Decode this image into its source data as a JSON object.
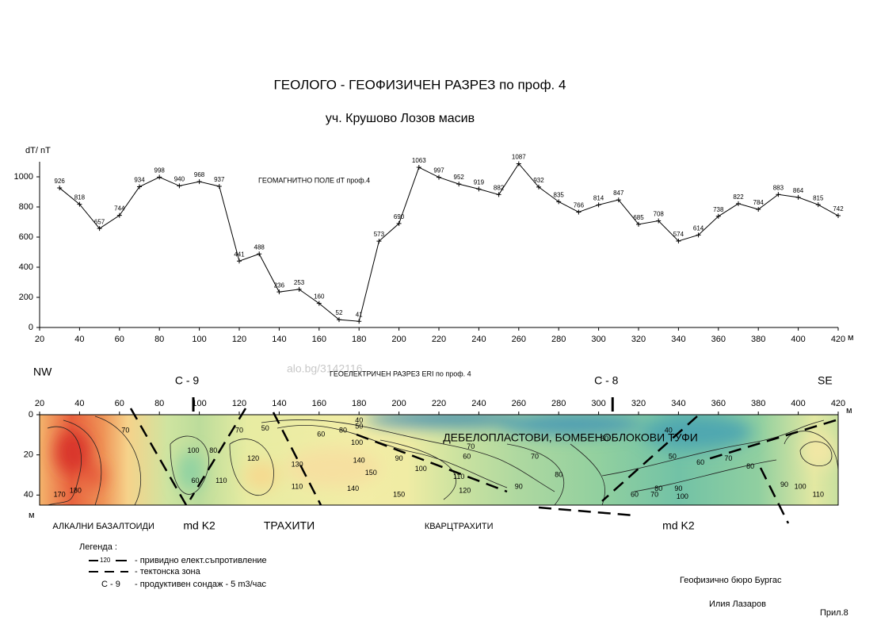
{
  "title": "ГЕОЛОГО - ГЕОФИЗИЧЕН  РАЗРЕЗ  по проф. 4",
  "subtitle": "уч. Крушово  Лозов масив",
  "watermark": "alo.bg/3142116",
  "chart_data": [
    {
      "type": "line",
      "annotation": "ГЕОМАГНИТНО ПОЛЕ  dT  проф.4",
      "y_label": "dT/ nT",
      "x_unit": "м",
      "x": [
        30,
        40,
        50,
        60,
        70,
        80,
        90,
        100,
        110,
        120,
        130,
        140,
        150,
        160,
        170,
        180,
        190,
        200,
        210,
        220,
        230,
        240,
        250,
        260,
        270,
        280,
        290,
        300,
        310,
        320,
        330,
        340,
        350,
        360,
        370,
        380,
        390,
        400,
        410,
        420
      ],
      "values": [
        926,
        818,
        657,
        744,
        934,
        998,
        940,
        968,
        937,
        441,
        488,
        236,
        253,
        160,
        52,
        41,
        573,
        690,
        1063,
        997,
        952,
        919,
        882,
        1087,
        932,
        835,
        766,
        814,
        847,
        685,
        708,
        574,
        614,
        738,
        822,
        784,
        883,
        864,
        815,
        742
      ],
      "color": "#000000",
      "xlim": [
        20,
        420
      ],
      "xticks": [
        20,
        40,
        60,
        80,
        100,
        120,
        140,
        160,
        180,
        200,
        220,
        240,
        260,
        280,
        300,
        320,
        340,
        360,
        380,
        400,
        420
      ],
      "ylim": [
        0,
        1100
      ],
      "yticks": [
        0,
        200,
        400,
        600,
        800,
        1000
      ]
    },
    {
      "type": "contour",
      "title": "ГЕОЕЛЕКТРИЧЕН РАЗРЕЗ   ERI   по проф. 4",
      "y_unit": "м",
      "x_unit": "м",
      "left_label": "NW",
      "right_label": "SE",
      "wells": [
        {
          "name": "С - 9",
          "x": 97
        },
        {
          "name": "С - 8",
          "x": 307
        }
      ],
      "xlim": [
        20,
        420
      ],
      "xticks": [
        20,
        40,
        60,
        80,
        100,
        120,
        140,
        160,
        180,
        200,
        220,
        240,
        260,
        280,
        300,
        320,
        340,
        360,
        380,
        400,
        420
      ],
      "ylim": [
        0,
        45
      ],
      "yticks": [
        0,
        20,
        40
      ],
      "formations": [
        {
          "name": "АЛКАЛНИ  БАЗАЛТОИДИ",
          "x": 52
        },
        {
          "name": "md K2",
          "x": 100
        },
        {
          "name": "ТРАХИТИ",
          "x": 145
        },
        {
          "name": "КВАРЦТРАХИТИ",
          "x": 230
        },
        {
          "name": "md K2",
          "x": 340
        }
      ],
      "inner_label": "ДЕБЕЛОПЛАСТОВИ, БОМБЕНОБЛОКОВИ  ТУФИ",
      "contour_labels": [
        {
          "value": 170,
          "x": 30,
          "depth": 40
        },
        {
          "value": 180,
          "x": 38,
          "depth": 38
        },
        {
          "value": 70,
          "x": 63,
          "depth": 8
        },
        {
          "value": 100,
          "x": 97,
          "depth": 18
        },
        {
          "value": 80,
          "x": 107,
          "depth": 18
        },
        {
          "value": 60,
          "x": 98,
          "depth": 33
        },
        {
          "value": 110,
          "x": 111,
          "depth": 33
        },
        {
          "value": 70,
          "x": 120,
          "depth": 8
        },
        {
          "value": 120,
          "x": 127,
          "depth": 22
        },
        {
          "value": 130,
          "x": 149,
          "depth": 25
        },
        {
          "value": 110,
          "x": 149,
          "depth": 36
        },
        {
          "value": 50,
          "x": 133,
          "depth": 7
        },
        {
          "value": 60,
          "x": 161,
          "depth": 10
        },
        {
          "value": 80,
          "x": 172,
          "depth": 8
        },
        {
          "value": 40,
          "x": 180,
          "depth": 3
        },
        {
          "value": 50,
          "x": 180,
          "depth": 6
        },
        {
          "value": 100,
          "x": 179,
          "depth": 14
        },
        {
          "value": 140,
          "x": 180,
          "depth": 23
        },
        {
          "value": 150,
          "x": 186,
          "depth": 29
        },
        {
          "value": 140,
          "x": 177,
          "depth": 37
        },
        {
          "value": 150,
          "x": 200,
          "depth": 40
        },
        {
          "value": 90,
          "x": 200,
          "depth": 22
        },
        {
          "value": 100,
          "x": 211,
          "depth": 27
        },
        {
          "value": 110,
          "x": 230,
          "depth": 31
        },
        {
          "value": 120,
          "x": 233,
          "depth": 38
        },
        {
          "value": 70,
          "x": 236,
          "depth": 16
        },
        {
          "value": 60,
          "x": 234,
          "depth": 21
        },
        {
          "value": 90,
          "x": 260,
          "depth": 36
        },
        {
          "value": 70,
          "x": 268,
          "depth": 21
        },
        {
          "value": 80,
          "x": 280,
          "depth": 30
        },
        {
          "value": 60,
          "x": 303,
          "depth": 12
        },
        {
          "value": 60,
          "x": 318,
          "depth": 40
        },
        {
          "value": 70,
          "x": 328,
          "depth": 40
        },
        {
          "value": 80,
          "x": 330,
          "depth": 37
        },
        {
          "value": 90,
          "x": 340,
          "depth": 37
        },
        {
          "value": 100,
          "x": 342,
          "depth": 41
        },
        {
          "value": 50,
          "x": 337,
          "depth": 21
        },
        {
          "value": 40,
          "x": 335,
          "depth": 8
        },
        {
          "value": 70,
          "x": 365,
          "depth": 22
        },
        {
          "value": 60,
          "x": 351,
          "depth": 24
        },
        {
          "value": 80,
          "x": 376,
          "depth": 26
        },
        {
          "value": 90,
          "x": 393,
          "depth": 35
        },
        {
          "value": 100,
          "x": 401,
          "depth": 36
        },
        {
          "value": 110,
          "x": 410,
          "depth": 40
        }
      ]
    }
  ],
  "legend": {
    "title": "Легенда :",
    "items": [
      {
        "symbol": "120",
        "text": "- привидно елект.съпротивление"
      },
      {
        "text": "- тектонска зона"
      },
      {
        "symbol": "С - 9",
        "text": "- продуктивен сондаж - 5 m3/час"
      }
    ]
  },
  "footer": {
    "org": "Геофизично бюро   Бургас",
    "author": "Илия  Лазаров",
    "ref": "Прил.8"
  }
}
